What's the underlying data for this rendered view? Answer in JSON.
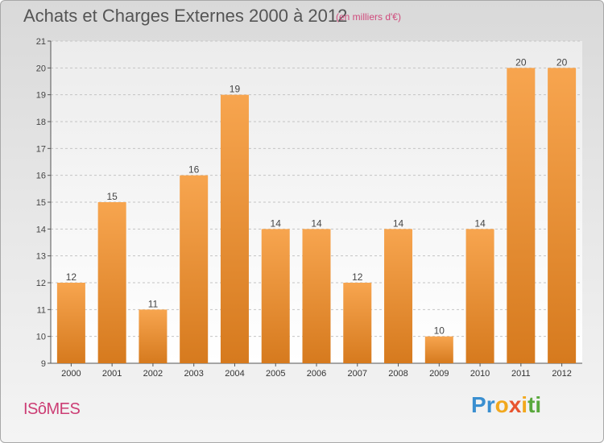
{
  "header": {
    "title": "Achats et Charges Externes 2000 à 2012",
    "unit": "(en milliers d'€)"
  },
  "footer": {
    "commune": "ISôMES",
    "logo_letters": [
      "P",
      "r",
      "o",
      "x",
      "i",
      "t",
      "i"
    ]
  },
  "colors": {
    "bar_top": "#f7a54f",
    "bar_bottom": "#d67a1e",
    "title_text": "#555555",
    "accent_pink": "#cc3d74",
    "logo": [
      "#3a8fd0",
      "#3a8fd0",
      "#f2a81d",
      "#e8542f",
      "#f2a81d",
      "#59a83c",
      "#59a83c"
    ]
  },
  "chart_data": {
    "type": "bar",
    "title": "Achats et Charges Externes 2000 à 2012",
    "subtitle": "(en milliers d'€)",
    "categories": [
      "2000",
      "2001",
      "2002",
      "2003",
      "2004",
      "2005",
      "2006",
      "2007",
      "2008",
      "2009",
      "2010",
      "2011",
      "2012"
    ],
    "values": [
      12,
      15,
      11,
      16,
      19,
      14,
      14,
      12,
      14,
      10,
      14,
      20,
      20
    ],
    "data_labels": [
      "12",
      "15",
      "11",
      "16",
      "19",
      "14",
      "14",
      "12",
      "14",
      "10",
      "14",
      "20",
      "20"
    ],
    "ylim": [
      9,
      21
    ],
    "yticks": [
      "9",
      "10",
      "11",
      "12",
      "13",
      "14",
      "15",
      "16",
      "17",
      "18",
      "19",
      "20",
      "21"
    ],
    "grid": "dashed horizontal",
    "xlabel": "",
    "ylabel": ""
  }
}
